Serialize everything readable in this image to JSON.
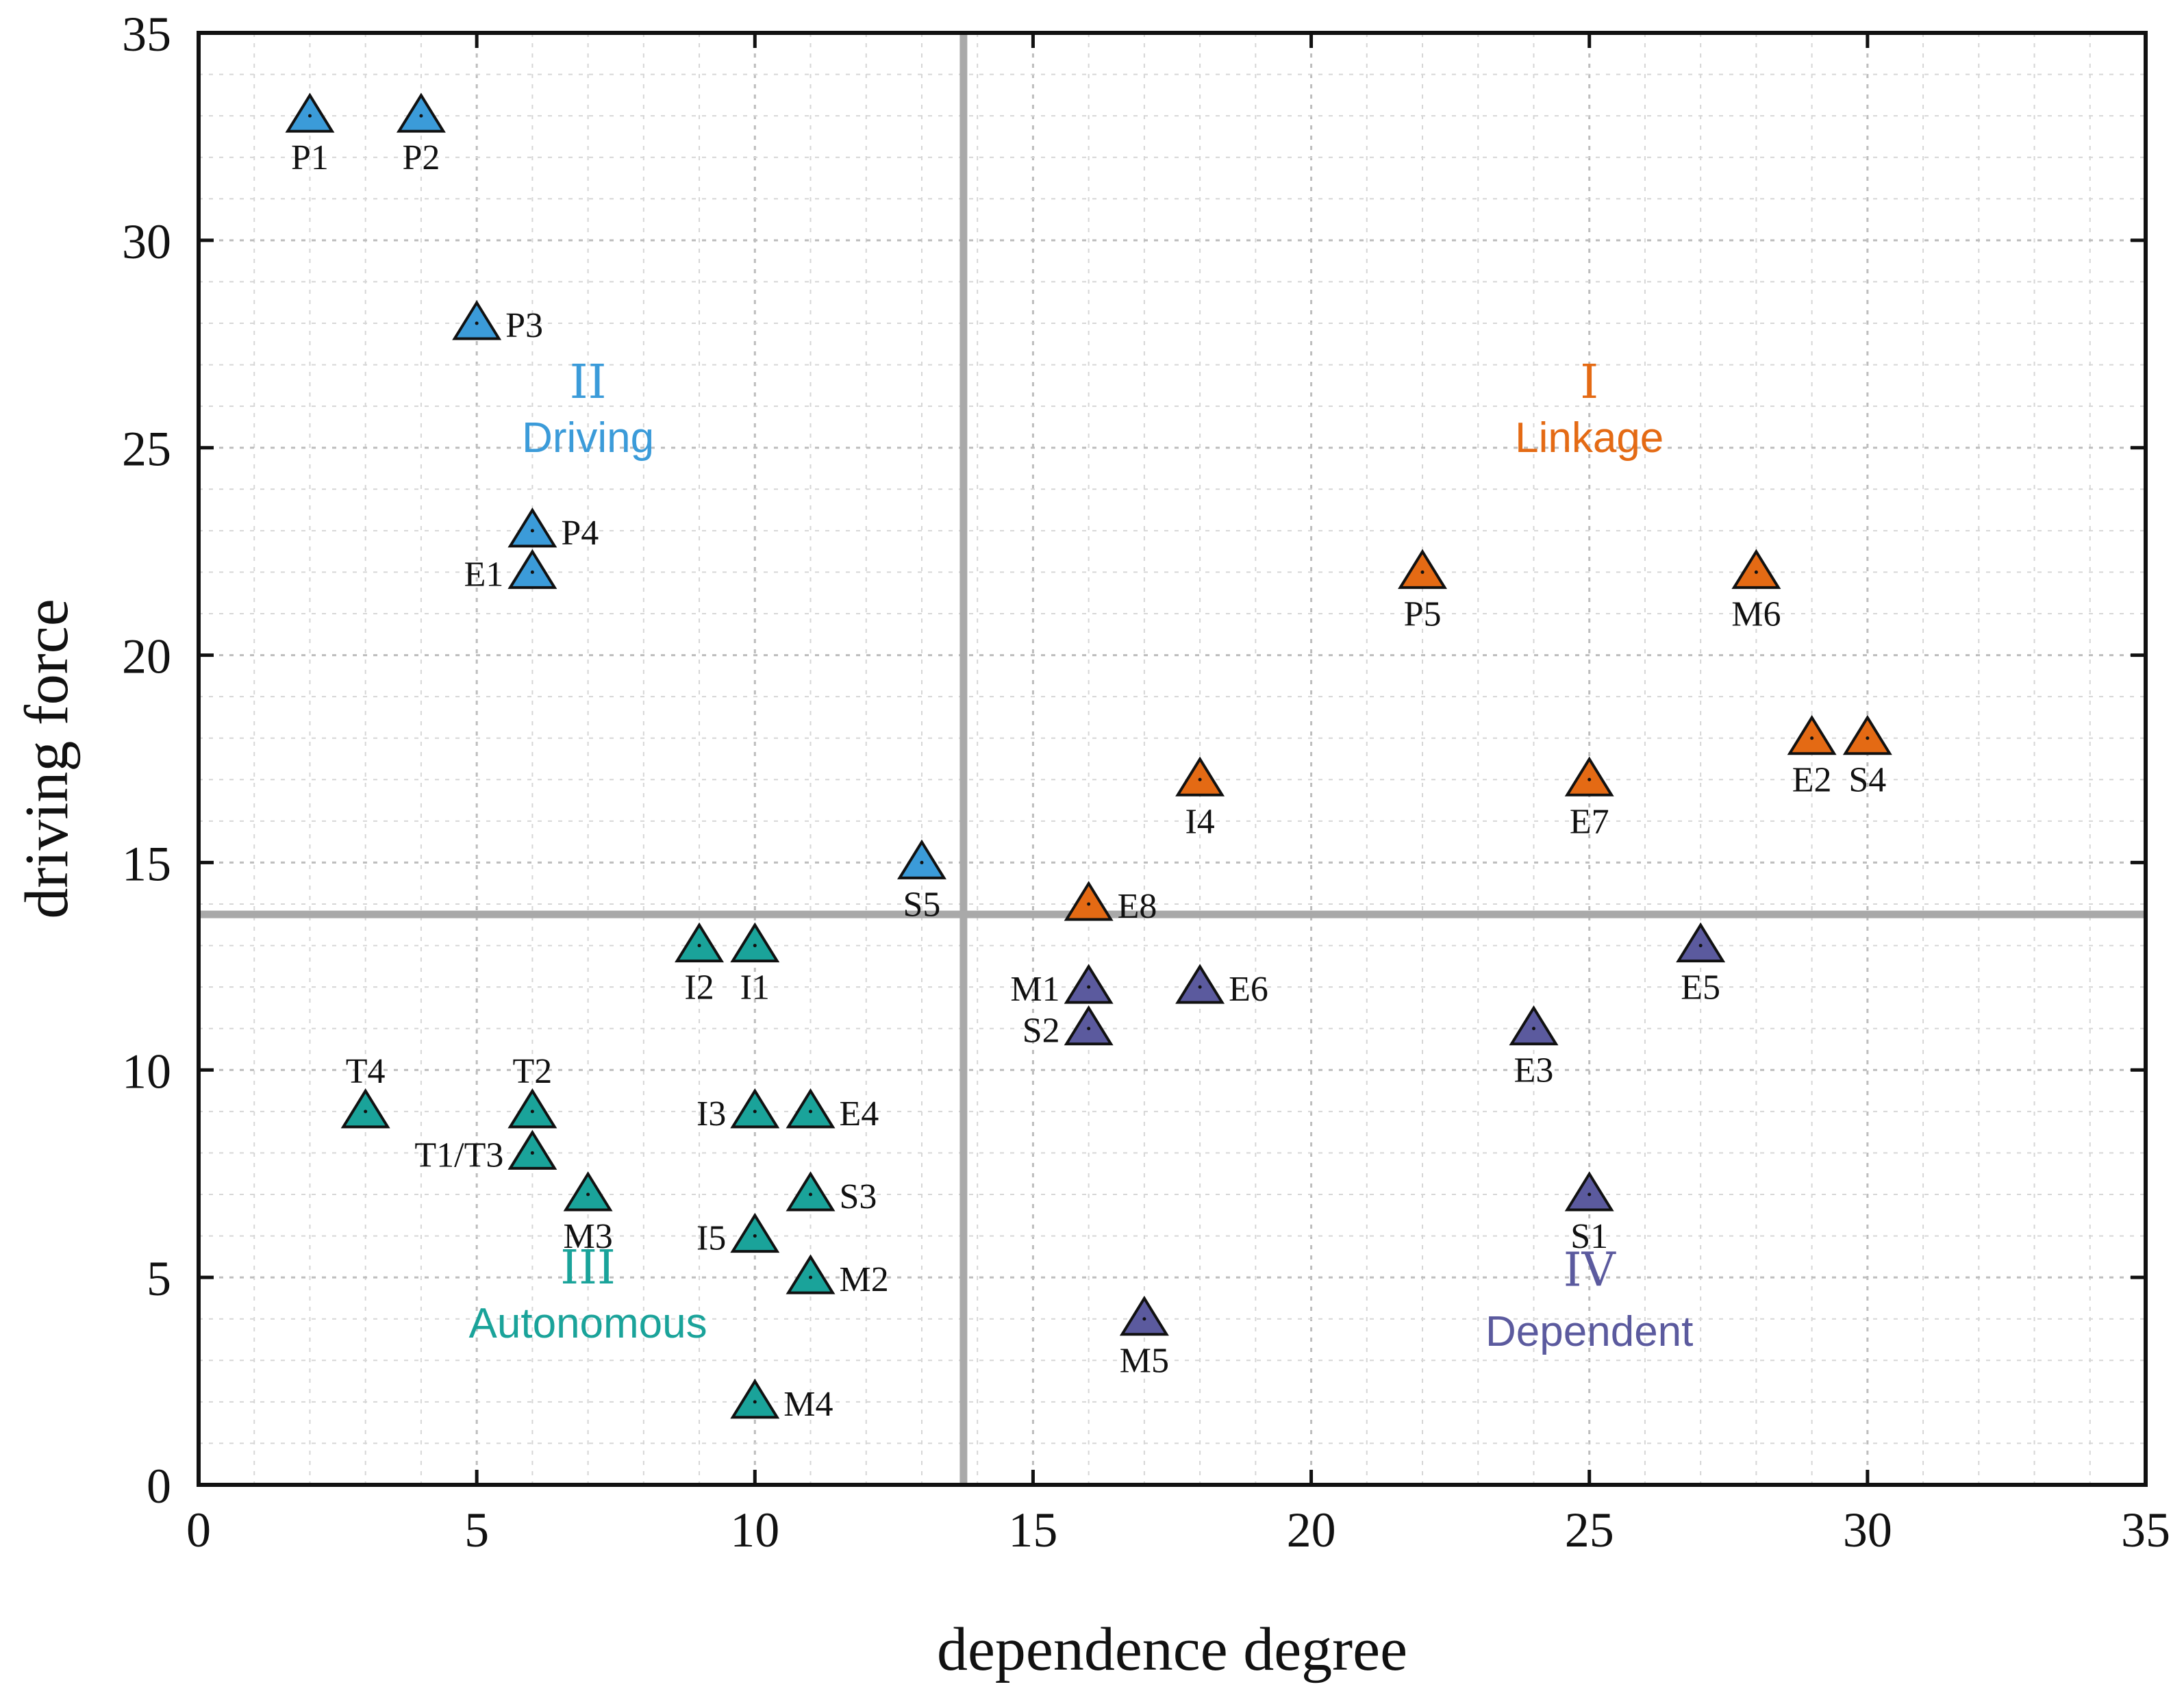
{
  "chart_data": {
    "type": "scatter",
    "xlabel": "dependence degree",
    "ylabel": "driving force",
    "xlim": [
      0,
      35
    ],
    "ylim": [
      0,
      35
    ],
    "xticks": [
      "0",
      "5",
      "10",
      "15",
      "20",
      "25",
      "30",
      "35"
    ],
    "yticks": [
      "0",
      "5",
      "10",
      "15",
      "20",
      "25",
      "30",
      "35"
    ],
    "grid": true,
    "marker": "triangle",
    "divider": {
      "x": 13.75,
      "y": 13.75
    },
    "quadrants": [
      {
        "id": "q1",
        "numeral": "I",
        "name": "Linkage",
        "x": 25,
        "y_num": 26.2,
        "y_name": 24.9,
        "color": "#e46a14"
      },
      {
        "id": "q2",
        "numeral": "II",
        "name": "Driving",
        "x": 7,
        "y_num": 26.2,
        "y_name": 24.9,
        "color": "#3b9bd9"
      },
      {
        "id": "q3",
        "numeral": "III",
        "name": "Autonomous",
        "x": 7,
        "y_num": 4.85,
        "y_name": 3.55,
        "color": "#1aa39a"
      },
      {
        "id": "q4",
        "numeral": "IV",
        "name": "Dependent",
        "x": 25,
        "y_num": 4.8,
        "y_name": 3.35,
        "color": "#5b5a9e"
      }
    ],
    "series": [
      {
        "quadrant": "II",
        "color": "#3b9bd9",
        "points": [
          {
            "label": "P1",
            "x": 2,
            "y": 33,
            "pos": "below"
          },
          {
            "label": "P2",
            "x": 4,
            "y": 33,
            "pos": "below"
          },
          {
            "label": "P3",
            "x": 5,
            "y": 28,
            "pos": "right"
          },
          {
            "label": "P4",
            "x": 6,
            "y": 23,
            "pos": "right"
          },
          {
            "label": "E1",
            "x": 6,
            "y": 22,
            "pos": "left"
          },
          {
            "label": "S5",
            "x": 13,
            "y": 15,
            "pos": "below"
          }
        ]
      },
      {
        "quadrant": "I",
        "color": "#e46a14",
        "points": [
          {
            "label": "P5",
            "x": 22,
            "y": 22,
            "pos": "below"
          },
          {
            "label": "M6",
            "x": 28,
            "y": 22,
            "pos": "below"
          },
          {
            "label": "E2",
            "x": 29,
            "y": 18,
            "pos": "below"
          },
          {
            "label": "S4",
            "x": 30,
            "y": 18,
            "pos": "below"
          },
          {
            "label": "I4",
            "x": 18,
            "y": 17,
            "pos": "below"
          },
          {
            "label": "E7",
            "x": 25,
            "y": 17,
            "pos": "below"
          },
          {
            "label": "E8",
            "x": 16,
            "y": 14,
            "pos": "right"
          }
        ]
      },
      {
        "quadrant": "III",
        "color": "#1aa39a",
        "points": [
          {
            "label": "I2",
            "x": 9,
            "y": 13,
            "pos": "below"
          },
          {
            "label": "I1",
            "x": 10,
            "y": 13,
            "pos": "below"
          },
          {
            "label": "T4",
            "x": 3,
            "y": 9,
            "pos": "above"
          },
          {
            "label": "T2",
            "x": 6,
            "y": 9,
            "pos": "above"
          },
          {
            "label": "T1/T3",
            "x": 6,
            "y": 8,
            "pos": "left"
          },
          {
            "label": "I3",
            "x": 10,
            "y": 9,
            "pos": "left"
          },
          {
            "label": "E4",
            "x": 11,
            "y": 9,
            "pos": "right"
          },
          {
            "label": "M3",
            "x": 7,
            "y": 7,
            "pos": "below"
          },
          {
            "label": "S3",
            "x": 11,
            "y": 7,
            "pos": "right"
          },
          {
            "label": "I5",
            "x": 10,
            "y": 6,
            "pos": "left"
          },
          {
            "label": "M2",
            "x": 11,
            "y": 5,
            "pos": "right"
          },
          {
            "label": "M4",
            "x": 10,
            "y": 2,
            "pos": "right"
          }
        ]
      },
      {
        "quadrant": "IV",
        "color": "#5b5a9e",
        "points": [
          {
            "label": "E5",
            "x": 27,
            "y": 13,
            "pos": "below"
          },
          {
            "label": "M1",
            "x": 16,
            "y": 12,
            "pos": "left"
          },
          {
            "label": "E6",
            "x": 18,
            "y": 12,
            "pos": "right"
          },
          {
            "label": "S2",
            "x": 16,
            "y": 11,
            "pos": "left"
          },
          {
            "label": "E3",
            "x": 24,
            "y": 11,
            "pos": "below"
          },
          {
            "label": "S1",
            "x": 25,
            "y": 7,
            "pos": "below"
          },
          {
            "label": "M5",
            "x": 17,
            "y": 4,
            "pos": "below"
          }
        ]
      }
    ]
  }
}
